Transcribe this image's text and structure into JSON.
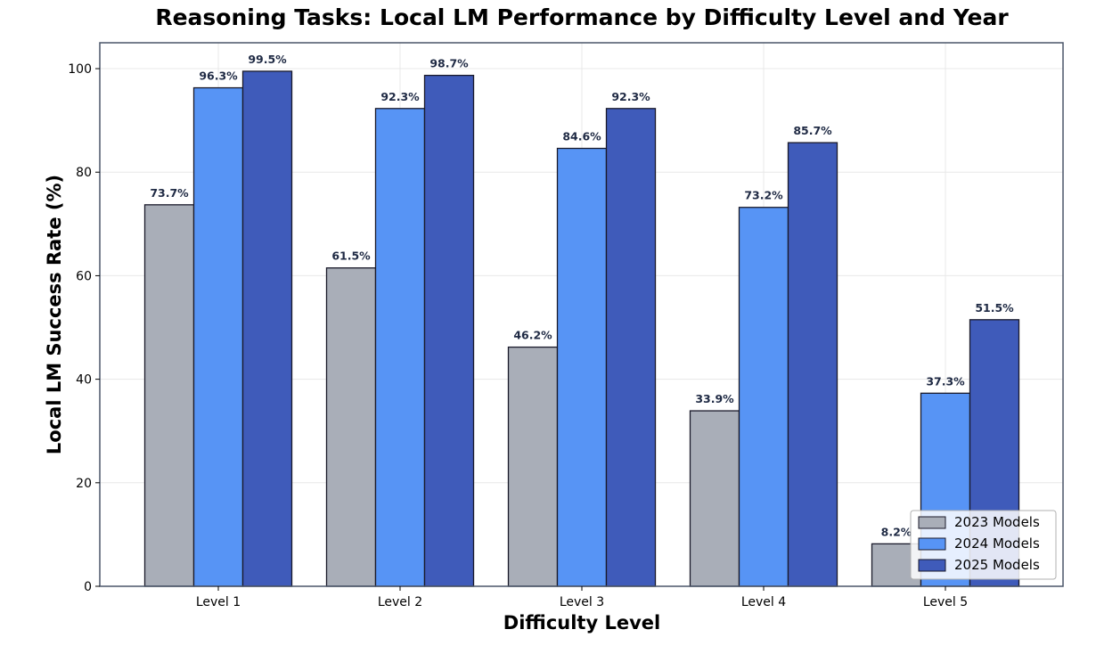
{
  "colors": {
    "2023": "#a9aeb8",
    "2024": "#5794f5",
    "2025": "#3f5bba",
    "bar_edge": "#1a1a2a",
    "frame": "#4a5568",
    "grid": "#e8e8e8"
  },
  "chart_data": {
    "type": "bar",
    "title": "Reasoning Tasks: Local LM Performance by Difficulty Level and Year",
    "xlabel": "Difficulty Level",
    "ylabel": "Local LM Success Rate (%)",
    "categories": [
      "Level 1",
      "Level 2",
      "Level 3",
      "Level 4",
      "Level 5"
    ],
    "series": [
      {
        "name": "2023 Models",
        "color_key": "2023",
        "values": [
          73.7,
          61.5,
          46.2,
          33.9,
          8.2
        ],
        "labels": [
          "73.7%",
          "61.5%",
          "46.2%",
          "33.9%",
          "8.2%"
        ]
      },
      {
        "name": "2024 Models",
        "color_key": "2024",
        "values": [
          96.3,
          92.3,
          84.6,
          73.2,
          37.3
        ],
        "labels": [
          "96.3%",
          "92.3%",
          "84.6%",
          "73.2%",
          "37.3%"
        ]
      },
      {
        "name": "2025 Models",
        "color_key": "2025",
        "values": [
          99.5,
          98.7,
          92.3,
          85.7,
          51.5
        ],
        "labels": [
          "99.5%",
          "98.7%",
          "92.3%",
          "85.7%",
          "51.5%"
        ]
      }
    ],
    "ylim": [
      0,
      105
    ],
    "yticks": [
      0,
      20,
      40,
      60,
      80,
      100
    ],
    "ytick_labels": [
      "0",
      "20",
      "40",
      "60",
      "80",
      "100"
    ],
    "grid": true,
    "legend_position": "lower-right"
  }
}
